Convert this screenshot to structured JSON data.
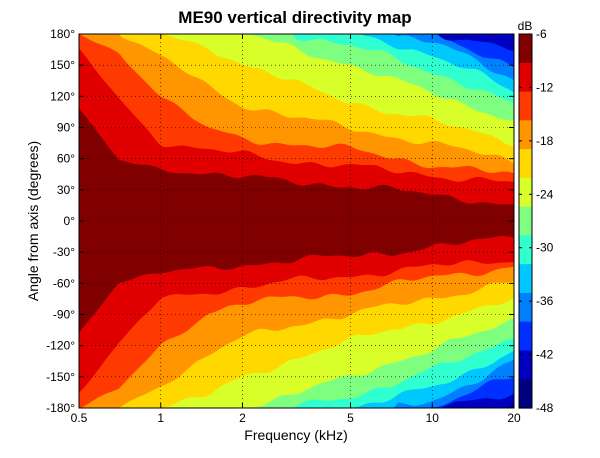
{
  "chart_data": {
    "type": "heatmap",
    "title": "ME90 vertical directivity map",
    "xlabel": "Frequency (kHz)",
    "ylabel": "Angle from axis (degrees)",
    "x_scale": "log",
    "xlim": [
      0.5,
      20
    ],
    "ylim": [
      -180,
      180
    ],
    "x_ticks": [
      0.5,
      1,
      2,
      5,
      10,
      20
    ],
    "x_tick_labels": [
      "0.5",
      "1",
      "2",
      "5",
      "10",
      "20"
    ],
    "y_ticks": [
      180,
      150,
      120,
      90,
      60,
      30,
      0,
      -30,
      -60,
      -90,
      -120,
      -150,
      -180
    ],
    "y_tick_labels": [
      "180°",
      "150°",
      "120°",
      "90°",
      "60°",
      "30°",
      "0°",
      "-30°",
      "-60°",
      "-90°",
      "-120°",
      "-150°",
      "-180°"
    ],
    "grid": true,
    "colorbar": {
      "unit": "dB",
      "ticks": [
        -6,
        -12,
        -18,
        -24,
        -30,
        -36,
        -42,
        -48
      ],
      "range": [
        -48,
        -6
      ]
    },
    "levels": [
      -9,
      -12,
      -15,
      -18,
      -21,
      -24,
      -27,
      -30,
      -33,
      -36,
      -39,
      -42
    ],
    "level_colors": [
      "#800000",
      "#e00000",
      "#ff3a00",
      "#ff9500",
      "#ffd800",
      "#d8ff2a",
      "#7fff80",
      "#30ffd0",
      "#00c8ff",
      "#0080ff",
      "#0030ff",
      "#0000c0",
      "#000080"
    ],
    "boundaries": {
      "note": "approximate contour edges: angle (degrees from axis) at which response drops to each level, sampled at freq_khz",
      "freq_khz": [
        0.5,
        0.7,
        1,
        1.5,
        2,
        3,
        5,
        7,
        10,
        15,
        20
      ],
      "angles": [
        [
          108,
          58,
          50,
          46,
          42,
          38,
          34,
          30,
          25,
          20,
          14
        ],
        [
          165,
          118,
          75,
          68,
          64,
          58,
          53,
          48,
          44,
          40,
          36
        ],
        [
          180,
          162,
          120,
          88,
          80,
          74,
          69,
          62,
          54,
          48,
          44
        ],
        [
          180,
          180,
          158,
          130,
          112,
          100,
          90,
          82,
          74,
          65,
          58
        ],
        [
          180,
          180,
          180,
          168,
          150,
          134,
          116,
          104,
          96,
          86,
          76
        ],
        [
          180,
          180,
          180,
          180,
          180,
          168,
          150,
          136,
          124,
          108,
          95
        ],
        [
          180,
          180,
          180,
          180,
          180,
          180,
          168,
          158,
          144,
          126,
          110
        ],
        [
          180,
          180,
          180,
          180,
          180,
          180,
          180,
          172,
          160,
          140,
          124
        ],
        [
          180,
          180,
          180,
          180,
          180,
          180,
          180,
          180,
          172,
          152,
          136
        ],
        [
          180,
          180,
          180,
          180,
          180,
          180,
          180,
          180,
          180,
          162,
          150
        ],
        [
          180,
          180,
          180,
          180,
          180,
          180,
          180,
          180,
          180,
          174,
          165
        ],
        [
          180,
          180,
          180,
          180,
          180,
          180,
          180,
          180,
          180,
          180,
          178
        ]
      ]
    }
  }
}
